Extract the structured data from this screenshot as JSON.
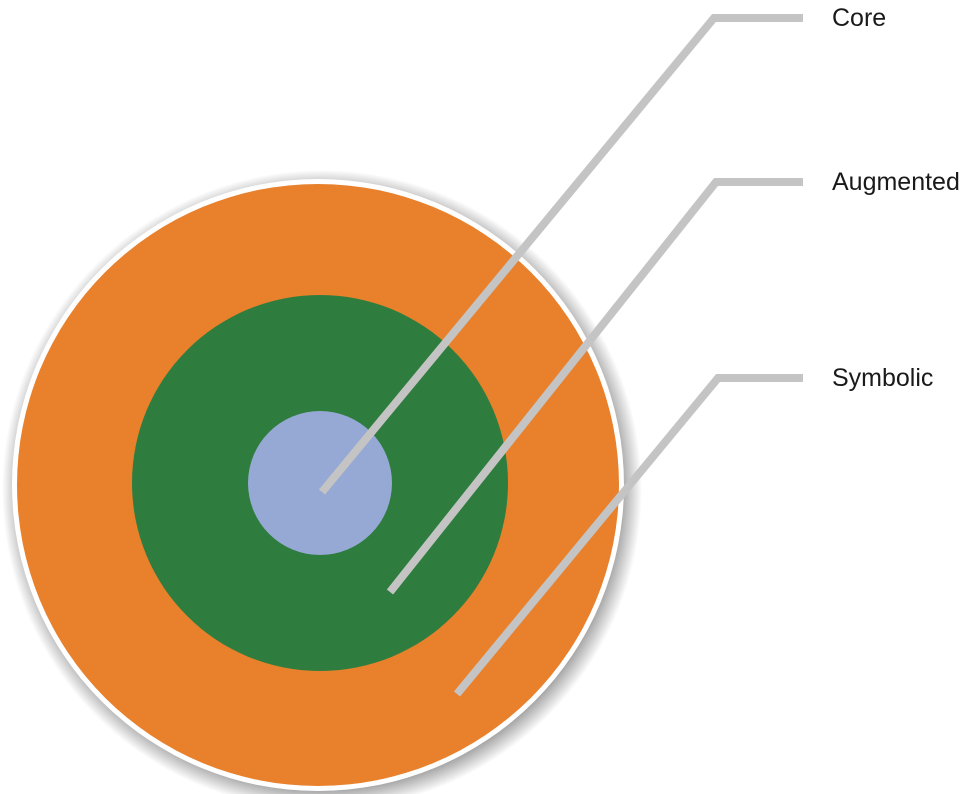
{
  "diagram": {
    "labels": {
      "core": "Core",
      "augmented": "Augmented",
      "symbolic": "Symbolic"
    },
    "colors": {
      "outer_ring": "#E8802C",
      "middle_ring": "#2E7D3E",
      "inner_circle": "#96A9D4",
      "leader_line": "#C4C4C4",
      "border": "#ffffff",
      "shadow": "#333333",
      "text": "#1a1a1a"
    }
  }
}
